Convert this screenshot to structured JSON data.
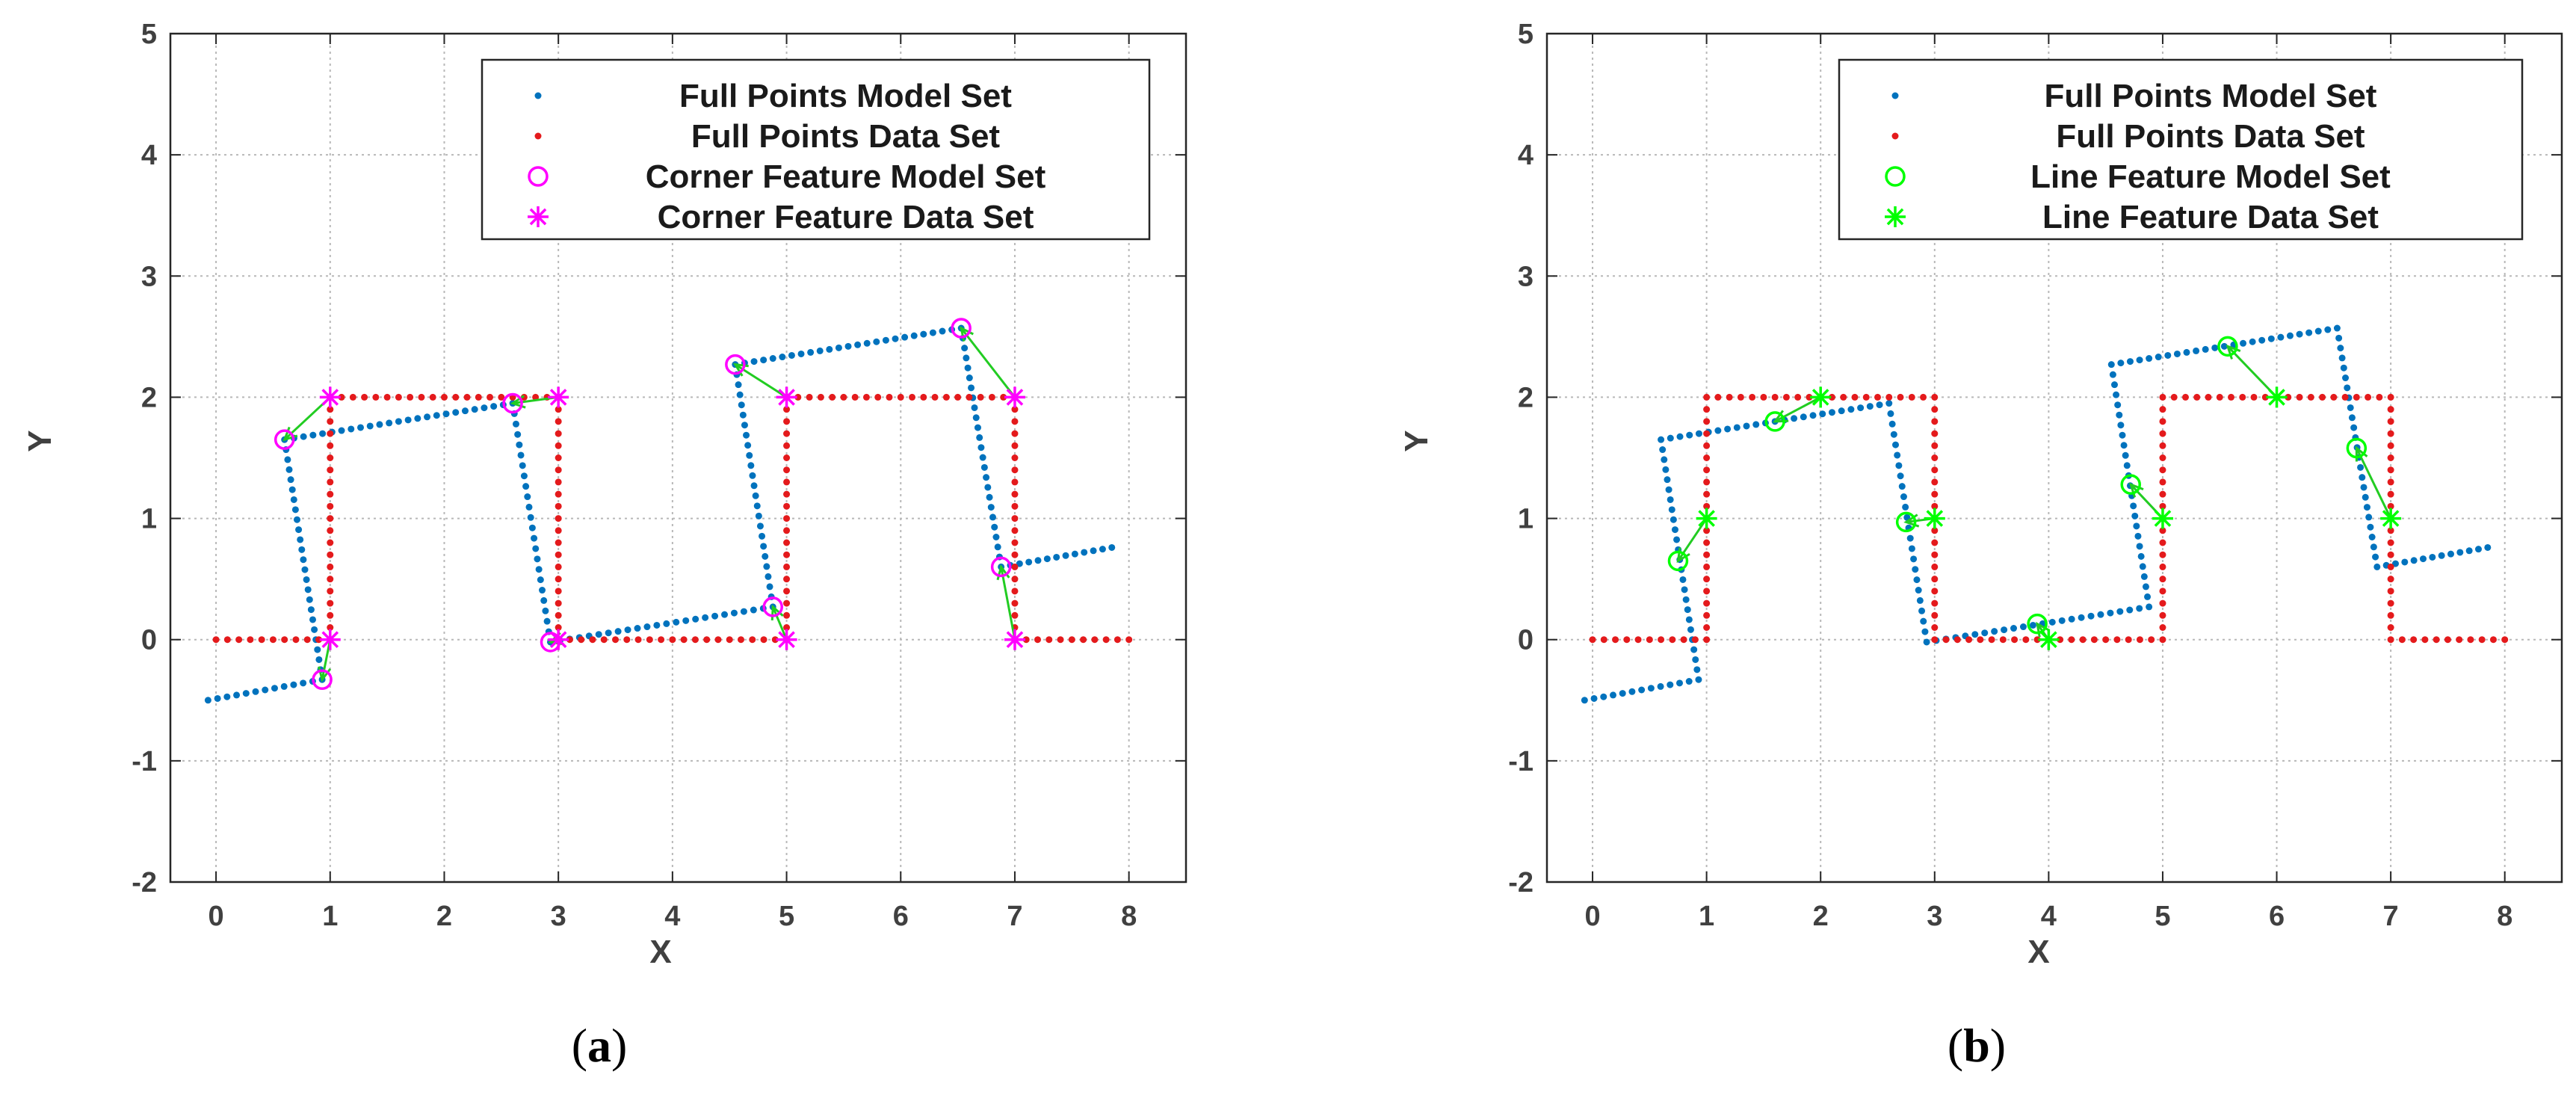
{
  "chart_data": [
    {
      "type": "scatter",
      "panel_label": {
        "open": "(",
        "letter": "a",
        "close": ")"
      },
      "xlabel": "X",
      "ylabel": "Y",
      "xlim": [
        -0.4,
        8.5
      ],
      "ylim": [
        -2,
        5
      ],
      "xticks": [
        0,
        1,
        2,
        3,
        4,
        5,
        6,
        7,
        8
      ],
      "yticks": [
        -2,
        -1,
        0,
        1,
        2,
        3,
        4,
        5
      ],
      "grid": true,
      "legend_position": "top-right",
      "model_polyline": [
        [
          -0.07,
          -0.5
        ],
        [
          0.93,
          -0.33
        ],
        [
          0.6,
          1.65
        ],
        [
          2.6,
          1.95
        ],
        [
          2.93,
          -0.02
        ],
        [
          4.88,
          0.27
        ],
        [
          4.55,
          2.27
        ],
        [
          6.53,
          2.57
        ],
        [
          6.88,
          0.6
        ],
        [
          7.85,
          0.76
        ]
      ],
      "data_polyline": [
        [
          0,
          0
        ],
        [
          1,
          0
        ],
        [
          1,
          2
        ],
        [
          3,
          2
        ],
        [
          3,
          0
        ],
        [
          5,
          0
        ],
        [
          5,
          2
        ],
        [
          7,
          2
        ],
        [
          7,
          0
        ],
        [
          8,
          0
        ]
      ],
      "series": [
        {
          "name": "Full Points Model Set",
          "marker": "dot",
          "color": "#0072BD"
        },
        {
          "name": "Full Points Data Set",
          "marker": "dot",
          "color": "#E41A1C"
        },
        {
          "name": "Corner Feature Model Set",
          "marker": "circle",
          "color": "#FF00FF",
          "points": [
            [
              0.6,
              1.65
            ],
            [
              0.93,
              -0.33
            ],
            [
              2.6,
              1.95
            ],
            [
              2.93,
              -0.02
            ],
            [
              4.55,
              2.27
            ],
            [
              4.88,
              0.27
            ],
            [
              6.53,
              2.57
            ],
            [
              6.88,
              0.6
            ]
          ]
        },
        {
          "name": "Corner Feature Data Set",
          "marker": "asterisk",
          "color": "#FF00FF",
          "points": [
            [
              1,
              2
            ],
            [
              1,
              0
            ],
            [
              3,
              2
            ],
            [
              3,
              0
            ],
            [
              5,
              2
            ],
            [
              5,
              0
            ],
            [
              7,
              2
            ],
            [
              7,
              0
            ]
          ]
        }
      ],
      "correspondence_color": "#22CC22"
    },
    {
      "type": "scatter",
      "panel_label": {
        "open": "(",
        "letter": "b",
        "close": ")"
      },
      "xlabel": "X",
      "ylabel": "Y",
      "xlim": [
        -0.4,
        8.5
      ],
      "ylim": [
        -2,
        5
      ],
      "xticks": [
        0,
        1,
        2,
        3,
        4,
        5,
        6,
        7,
        8
      ],
      "yticks": [
        -2,
        -1,
        0,
        1,
        2,
        3,
        4,
        5
      ],
      "grid": true,
      "legend_position": "top-right",
      "model_polyline": [
        [
          -0.07,
          -0.5
        ],
        [
          0.93,
          -0.33
        ],
        [
          0.6,
          1.65
        ],
        [
          2.6,
          1.95
        ],
        [
          2.93,
          -0.02
        ],
        [
          4.88,
          0.27
        ],
        [
          4.55,
          2.27
        ],
        [
          6.53,
          2.57
        ],
        [
          6.88,
          0.6
        ],
        [
          7.85,
          0.76
        ]
      ],
      "data_polyline": [
        [
          0,
          0
        ],
        [
          1,
          0
        ],
        [
          1,
          2
        ],
        [
          3,
          2
        ],
        [
          3,
          0
        ],
        [
          5,
          0
        ],
        [
          5,
          2
        ],
        [
          7,
          2
        ],
        [
          7,
          0
        ],
        [
          8,
          0
        ]
      ],
      "series": [
        {
          "name": "Full Points Model Set",
          "marker": "dot",
          "color": "#0072BD"
        },
        {
          "name": "Full Points Data Set",
          "marker": "dot",
          "color": "#E41A1C"
        },
        {
          "name": "Line Feature Model Set",
          "marker": "circle",
          "color": "#00FF00",
          "points": [
            [
              0.75,
              0.65
            ],
            [
              1.6,
              1.8
            ],
            [
              2.75,
              0.97
            ],
            [
              3.9,
              0.13
            ],
            [
              4.72,
              1.28
            ],
            [
              5.57,
              2.42
            ],
            [
              6.7,
              1.58
            ]
          ]
        },
        {
          "name": "Line Feature Data Set",
          "marker": "asterisk",
          "color": "#00FF00",
          "points": [
            [
              1,
              1
            ],
            [
              2,
              2
            ],
            [
              3,
              1
            ],
            [
              4,
              0
            ],
            [
              5,
              1
            ],
            [
              6,
              2
            ],
            [
              7,
              1
            ]
          ]
        }
      ],
      "correspondence_color": "#22CC22"
    }
  ]
}
